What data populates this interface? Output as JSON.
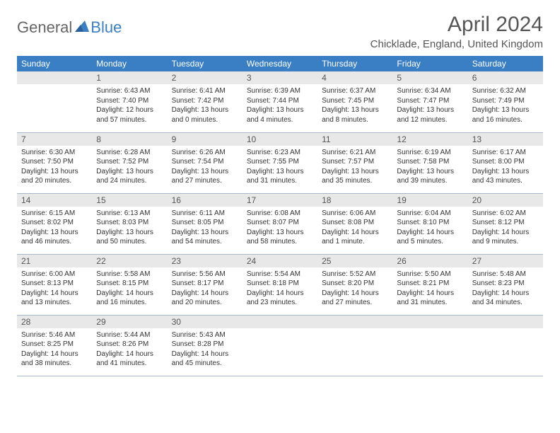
{
  "logo": {
    "general": "General",
    "blue": "Blue"
  },
  "title": "April 2024",
  "location": "Chicklade, England, United Kingdom",
  "colors": {
    "header_bg": "#3a7fc4",
    "header_text": "#ffffff",
    "daynum_bg": "#e8e8e8",
    "border": "#a8b8cc",
    "text": "#333333",
    "title_text": "#555555"
  },
  "weekdays": [
    "Sunday",
    "Monday",
    "Tuesday",
    "Wednesday",
    "Thursday",
    "Friday",
    "Saturday"
  ],
  "weeks": [
    [
      null,
      {
        "n": "1",
        "sr": "Sunrise: 6:43 AM",
        "ss": "Sunset: 7:40 PM",
        "d1": "Daylight: 12 hours",
        "d2": "and 57 minutes."
      },
      {
        "n": "2",
        "sr": "Sunrise: 6:41 AM",
        "ss": "Sunset: 7:42 PM",
        "d1": "Daylight: 13 hours",
        "d2": "and 0 minutes."
      },
      {
        "n": "3",
        "sr": "Sunrise: 6:39 AM",
        "ss": "Sunset: 7:44 PM",
        "d1": "Daylight: 13 hours",
        "d2": "and 4 minutes."
      },
      {
        "n": "4",
        "sr": "Sunrise: 6:37 AM",
        "ss": "Sunset: 7:45 PM",
        "d1": "Daylight: 13 hours",
        "d2": "and 8 minutes."
      },
      {
        "n": "5",
        "sr": "Sunrise: 6:34 AM",
        "ss": "Sunset: 7:47 PM",
        "d1": "Daylight: 13 hours",
        "d2": "and 12 minutes."
      },
      {
        "n": "6",
        "sr": "Sunrise: 6:32 AM",
        "ss": "Sunset: 7:49 PM",
        "d1": "Daylight: 13 hours",
        "d2": "and 16 minutes."
      }
    ],
    [
      {
        "n": "7",
        "sr": "Sunrise: 6:30 AM",
        "ss": "Sunset: 7:50 PM",
        "d1": "Daylight: 13 hours",
        "d2": "and 20 minutes."
      },
      {
        "n": "8",
        "sr": "Sunrise: 6:28 AM",
        "ss": "Sunset: 7:52 PM",
        "d1": "Daylight: 13 hours",
        "d2": "and 24 minutes."
      },
      {
        "n": "9",
        "sr": "Sunrise: 6:26 AM",
        "ss": "Sunset: 7:54 PM",
        "d1": "Daylight: 13 hours",
        "d2": "and 27 minutes."
      },
      {
        "n": "10",
        "sr": "Sunrise: 6:23 AM",
        "ss": "Sunset: 7:55 PM",
        "d1": "Daylight: 13 hours",
        "d2": "and 31 minutes."
      },
      {
        "n": "11",
        "sr": "Sunrise: 6:21 AM",
        "ss": "Sunset: 7:57 PM",
        "d1": "Daylight: 13 hours",
        "d2": "and 35 minutes."
      },
      {
        "n": "12",
        "sr": "Sunrise: 6:19 AM",
        "ss": "Sunset: 7:58 PM",
        "d1": "Daylight: 13 hours",
        "d2": "and 39 minutes."
      },
      {
        "n": "13",
        "sr": "Sunrise: 6:17 AM",
        "ss": "Sunset: 8:00 PM",
        "d1": "Daylight: 13 hours",
        "d2": "and 43 minutes."
      }
    ],
    [
      {
        "n": "14",
        "sr": "Sunrise: 6:15 AM",
        "ss": "Sunset: 8:02 PM",
        "d1": "Daylight: 13 hours",
        "d2": "and 46 minutes."
      },
      {
        "n": "15",
        "sr": "Sunrise: 6:13 AM",
        "ss": "Sunset: 8:03 PM",
        "d1": "Daylight: 13 hours",
        "d2": "and 50 minutes."
      },
      {
        "n": "16",
        "sr": "Sunrise: 6:11 AM",
        "ss": "Sunset: 8:05 PM",
        "d1": "Daylight: 13 hours",
        "d2": "and 54 minutes."
      },
      {
        "n": "17",
        "sr": "Sunrise: 6:08 AM",
        "ss": "Sunset: 8:07 PM",
        "d1": "Daylight: 13 hours",
        "d2": "and 58 minutes."
      },
      {
        "n": "18",
        "sr": "Sunrise: 6:06 AM",
        "ss": "Sunset: 8:08 PM",
        "d1": "Daylight: 14 hours",
        "d2": "and 1 minute."
      },
      {
        "n": "19",
        "sr": "Sunrise: 6:04 AM",
        "ss": "Sunset: 8:10 PM",
        "d1": "Daylight: 14 hours",
        "d2": "and 5 minutes."
      },
      {
        "n": "20",
        "sr": "Sunrise: 6:02 AM",
        "ss": "Sunset: 8:12 PM",
        "d1": "Daylight: 14 hours",
        "d2": "and 9 minutes."
      }
    ],
    [
      {
        "n": "21",
        "sr": "Sunrise: 6:00 AM",
        "ss": "Sunset: 8:13 PM",
        "d1": "Daylight: 14 hours",
        "d2": "and 13 minutes."
      },
      {
        "n": "22",
        "sr": "Sunrise: 5:58 AM",
        "ss": "Sunset: 8:15 PM",
        "d1": "Daylight: 14 hours",
        "d2": "and 16 minutes."
      },
      {
        "n": "23",
        "sr": "Sunrise: 5:56 AM",
        "ss": "Sunset: 8:17 PM",
        "d1": "Daylight: 14 hours",
        "d2": "and 20 minutes."
      },
      {
        "n": "24",
        "sr": "Sunrise: 5:54 AM",
        "ss": "Sunset: 8:18 PM",
        "d1": "Daylight: 14 hours",
        "d2": "and 23 minutes."
      },
      {
        "n": "25",
        "sr": "Sunrise: 5:52 AM",
        "ss": "Sunset: 8:20 PM",
        "d1": "Daylight: 14 hours",
        "d2": "and 27 minutes."
      },
      {
        "n": "26",
        "sr": "Sunrise: 5:50 AM",
        "ss": "Sunset: 8:21 PM",
        "d1": "Daylight: 14 hours",
        "d2": "and 31 minutes."
      },
      {
        "n": "27",
        "sr": "Sunrise: 5:48 AM",
        "ss": "Sunset: 8:23 PM",
        "d1": "Daylight: 14 hours",
        "d2": "and 34 minutes."
      }
    ],
    [
      {
        "n": "28",
        "sr": "Sunrise: 5:46 AM",
        "ss": "Sunset: 8:25 PM",
        "d1": "Daylight: 14 hours",
        "d2": "and 38 minutes."
      },
      {
        "n": "29",
        "sr": "Sunrise: 5:44 AM",
        "ss": "Sunset: 8:26 PM",
        "d1": "Daylight: 14 hours",
        "d2": "and 41 minutes."
      },
      {
        "n": "30",
        "sr": "Sunrise: 5:43 AM",
        "ss": "Sunset: 8:28 PM",
        "d1": "Daylight: 14 hours",
        "d2": "and 45 minutes."
      },
      null,
      null,
      null,
      null
    ]
  ]
}
